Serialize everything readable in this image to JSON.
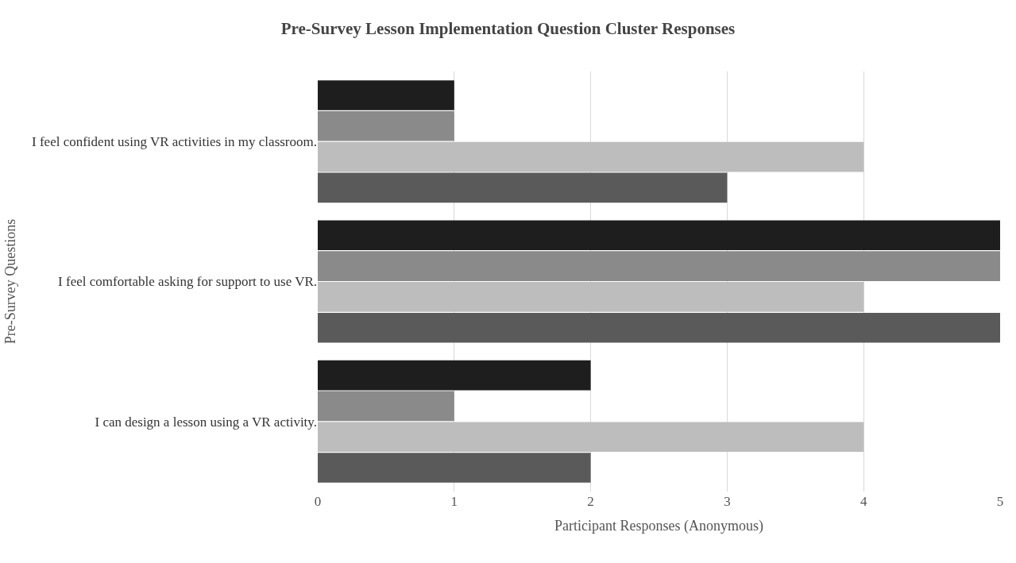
{
  "chart_data": {
    "type": "bar",
    "orientation": "horizontal",
    "title": "Pre-Survey Lesson Implementation Question Cluster Responses",
    "xlabel": "Participant Responses (Anonymous)",
    "ylabel": "Pre-Survey Questions",
    "categories": [
      "I feel confident using VR activities in my classroom.",
      "I feel comfortable asking for support to use VR.",
      "I can design a lesson using a VR activity."
    ],
    "series": [
      {
        "color": "#1e1e1e",
        "values": [
          1,
          5,
          2
        ]
      },
      {
        "color": "#8a8a8a",
        "values": [
          1,
          5,
          1
        ]
      },
      {
        "color": "#bdbdbd",
        "values": [
          4,
          4,
          4
        ]
      },
      {
        "color": "#5a5a5a",
        "values": [
          3,
          5,
          2
        ]
      }
    ],
    "xlim": [
      0,
      5
    ],
    "xticks": [
      0,
      1,
      2,
      3,
      4,
      5
    ],
    "grid": "x"
  }
}
